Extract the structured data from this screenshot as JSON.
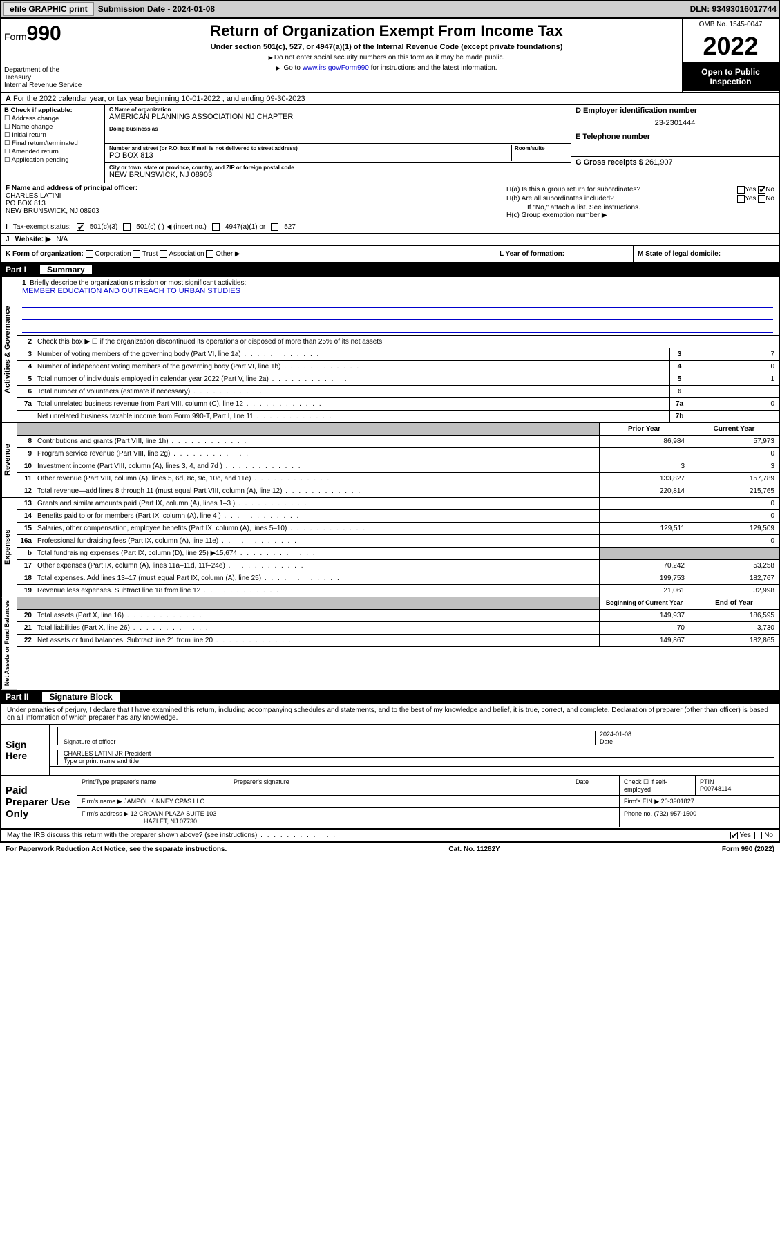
{
  "topbar": {
    "efile": "efile GRAPHIC print",
    "submission_label": "Submission Date - 2024-01-08",
    "dln": "DLN: 93493016017744"
  },
  "header": {
    "form_word": "Form",
    "form_num": "990",
    "dept": "Department of the Treasury",
    "irs": "Internal Revenue Service",
    "title": "Return of Organization Exempt From Income Tax",
    "subtitle": "Under section 501(c), 527, or 4947(a)(1) of the Internal Revenue Code (except private foundations)",
    "note1": "Do not enter social security numbers on this form as it may be made public.",
    "note2_pre": "Go to ",
    "note2_link": "www.irs.gov/Form990",
    "note2_post": " for instructions and the latest information.",
    "omb": "OMB No. 1545-0047",
    "year": "2022",
    "inspect": "Open to Public Inspection"
  },
  "row_a": {
    "text": "For the 2022 calendar year, or tax year beginning 10-01-2022   , and ending 09-30-2023",
    "label_a": "A"
  },
  "col_b": {
    "hdr": "B Check if applicable:",
    "opts": [
      "Address change",
      "Name change",
      "Initial return",
      "Final return/terminated",
      "Amended return",
      "Application pending"
    ]
  },
  "col_c": {
    "name_lbl": "C Name of organization",
    "name": "AMERICAN PLANNING ASSOCIATION NJ CHAPTER",
    "dba_lbl": "Doing business as",
    "addr_lbl": "Number and street (or P.O. box if mail is not delivered to street address)",
    "room_lbl": "Room/suite",
    "addr": "PO BOX 813",
    "city_lbl": "City or town, state or province, country, and ZIP or foreign postal code",
    "city": "NEW BRUNSWICK, NJ  08903"
  },
  "col_d": {
    "d_lbl": "D Employer identification number",
    "ein": "23-2301444",
    "e_lbl": "E Telephone number",
    "g_lbl": "G Gross receipts $",
    "g_val": "261,907"
  },
  "row_fh": {
    "f_lbl": "F Name and address of principal officer:",
    "f_name": "CHARLES LATINI",
    "f_addr1": "PO BOX 813",
    "f_addr2": "NEW BRUNSWICK, NJ  08903",
    "ha": "H(a)  Is this a group return for subordinates?",
    "hb": "H(b)  Are all subordinates included?",
    "hb_note": "If \"No,\" attach a list. See instructions.",
    "hc": "H(c)  Group exemption number ▶",
    "yes": "Yes",
    "no": "No"
  },
  "row_i": {
    "lbl": "Tax-exempt status:",
    "o1": "501(c)(3)",
    "o2": "501(c) (   ) ◀ (insert no.)",
    "o3": "4947(a)(1) or",
    "o4": "527",
    "letter": "I"
  },
  "row_j": {
    "lbl": "Website: ▶",
    "val": "N/A",
    "letter": "J"
  },
  "row_k": {
    "k_lbl": "K Form of organization:",
    "opts": [
      "Corporation",
      "Trust",
      "Association",
      "Other ▶"
    ],
    "l_lbl": "L Year of formation:",
    "m_lbl": "M State of legal domicile:"
  },
  "parts": {
    "p1": "Part I",
    "p1t": "Summary",
    "p2": "Part II",
    "p2t": "Signature Block"
  },
  "vtabs": {
    "gov": "Activities & Governance",
    "rev": "Revenue",
    "exp": "Expenses",
    "net": "Net Assets or Fund Balances"
  },
  "mission": {
    "q": "Briefly describe the organization's mission or most significant activities:",
    "ans": "MEMBER EDUCATION AND OUTREACH TO URBAN STUDIES",
    "num": "1"
  },
  "lines": {
    "l2": {
      "n": "2",
      "t": "Check this box ▶ ☐  if the organization discontinued its operations or disposed of more than 25% of its net assets."
    },
    "l3": {
      "n": "3",
      "t": "Number of voting members of the governing body (Part VI, line 1a)",
      "box": "3",
      "v": "7"
    },
    "l4": {
      "n": "4",
      "t": "Number of independent voting members of the governing body (Part VI, line 1b)",
      "box": "4",
      "v": "0"
    },
    "l5": {
      "n": "5",
      "t": "Total number of individuals employed in calendar year 2022 (Part V, line 2a)",
      "box": "5",
      "v": "1"
    },
    "l6": {
      "n": "6",
      "t": "Total number of volunteers (estimate if necessary)",
      "box": "6",
      "v": ""
    },
    "l7a": {
      "n": "7a",
      "t": "Total unrelated business revenue from Part VIII, column (C), line 12",
      "box": "7a",
      "v": "0"
    },
    "l7b": {
      "n": "",
      "t": "Net unrelated business taxable income from Form 990-T, Part I, line 11",
      "box": "7b",
      "v": ""
    }
  },
  "tblhdr": {
    "c1": "Prior Year",
    "c2": "Current Year"
  },
  "revenue": [
    {
      "n": "8",
      "t": "Contributions and grants (Part VIII, line 1h)",
      "p": "86,984",
      "c": "57,973"
    },
    {
      "n": "9",
      "t": "Program service revenue (Part VIII, line 2g)",
      "p": "",
      "c": "0"
    },
    {
      "n": "10",
      "t": "Investment income (Part VIII, column (A), lines 3, 4, and 7d )",
      "p": "3",
      "c": "3"
    },
    {
      "n": "11",
      "t": "Other revenue (Part VIII, column (A), lines 5, 6d, 8c, 9c, 10c, and 11e)",
      "p": "133,827",
      "c": "157,789"
    },
    {
      "n": "12",
      "t": "Total revenue—add lines 8 through 11 (must equal Part VIII, column (A), line 12)",
      "p": "220,814",
      "c": "215,765"
    }
  ],
  "expenses": [
    {
      "n": "13",
      "t": "Grants and similar amounts paid (Part IX, column (A), lines 1–3 )",
      "p": "",
      "c": "0"
    },
    {
      "n": "14",
      "t": "Benefits paid to or for members (Part IX, column (A), line 4 )",
      "p": "",
      "c": "0"
    },
    {
      "n": "15",
      "t": "Salaries, other compensation, employee benefits (Part IX, column (A), lines 5–10)",
      "p": "129,511",
      "c": "129,509"
    },
    {
      "n": "16a",
      "t": "Professional fundraising fees (Part IX, column (A), line 11e)",
      "p": "",
      "c": "0"
    },
    {
      "n": "b",
      "t": "Total fundraising expenses (Part IX, column (D), line 25) ▶15,674",
      "p": "__GREY__",
      "c": "__GREY__"
    },
    {
      "n": "17",
      "t": "Other expenses (Part IX, column (A), lines 11a–11d, 11f–24e)",
      "p": "70,242",
      "c": "53,258"
    },
    {
      "n": "18",
      "t": "Total expenses. Add lines 13–17 (must equal Part IX, column (A), line 25)",
      "p": "199,753",
      "c": "182,767"
    },
    {
      "n": "19",
      "t": "Revenue less expenses. Subtract line 18 from line 12",
      "p": "21,061",
      "c": "32,998"
    }
  ],
  "nethdr": {
    "c1": "Beginning of Current Year",
    "c2": "End of Year"
  },
  "netassets": [
    {
      "n": "20",
      "t": "Total assets (Part X, line 16)",
      "p": "149,937",
      "c": "186,595"
    },
    {
      "n": "21",
      "t": "Total liabilities (Part X, line 26)",
      "p": "70",
      "c": "3,730"
    },
    {
      "n": "22",
      "t": "Net assets or fund balances. Subtract line 21 from line 20",
      "p": "149,867",
      "c": "182,865"
    }
  ],
  "sig": {
    "intro": "Under penalties of perjury, I declare that I have examined this return, including accompanying schedules and statements, and to the best of my knowledge and belief, it is true, correct, and complete. Declaration of preparer (other than officer) is based on all information of which preparer has any knowledge.",
    "sign_here": "Sign Here",
    "sig_officer": "Signature of officer",
    "date": "Date",
    "date_val": "2024-01-08",
    "name": "CHARLES LATINI JR President",
    "name_lbl": "Type or print name and title"
  },
  "paid": {
    "hdr": "Paid Preparer Use Only",
    "r1": {
      "c1": "Print/Type preparer's name",
      "c2": "Preparer's signature",
      "c3": "Date",
      "c4": "Check ☐ if self-employed",
      "c5": "PTIN",
      "ptin": "P00748114"
    },
    "r2": {
      "lbl": "Firm's name   ▶",
      "val": "JAMPOL KINNEY CPAS LLC",
      "einlbl": "Firm's EIN ▶",
      "ein": "20-3901827"
    },
    "r3": {
      "lbl": "Firm's address ▶",
      "val": "12 CROWN PLAZA SUITE 103",
      "phonelbl": "Phone no.",
      "phone": "(732) 957-1500"
    },
    "r3b": {
      "val": "HAZLET, NJ  07730"
    }
  },
  "footer": {
    "discuss": "May the IRS discuss this return with the preparer shown above? (see instructions)",
    "yes": "Yes",
    "no": "No",
    "pra": "For Paperwork Reduction Act Notice, see the separate instructions.",
    "cat": "Cat. No. 11282Y",
    "formno": "Form 990 (2022)"
  }
}
